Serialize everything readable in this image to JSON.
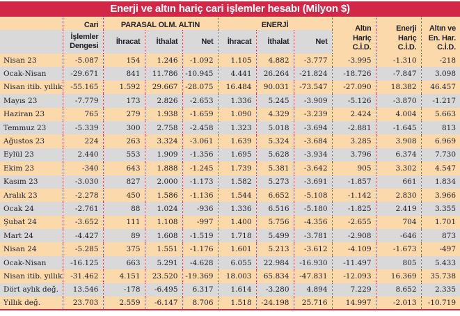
{
  "title": "Enerji ve altın hariç cari işlemler hesabı (Milyon $)",
  "colors": {
    "title_bar": "#d32748",
    "separator_dots": "#d63a45",
    "stripe_peach": "#fcd9ab",
    "stripe_gray": "#d9d9d9",
    "text": "#20202a",
    "title_text": "#ffffff"
  },
  "chart_data": {
    "type": "table",
    "title": "Enerji ve altın hariç cari işlemler hesabı (Milyon $)",
    "header": {
      "corner": "",
      "cari": {
        "l1": "Cari",
        "l2": "İşlemler",
        "l3": "Dengesi"
      },
      "group_altin": "PARASAL OLM. ALTIN",
      "group_enerji": "ENERJİ",
      "sub": [
        "İhracat",
        "İthalat",
        "Net",
        "İhracat",
        "İthalat",
        "Net"
      ],
      "right_cols": [
        {
          "l1": "Altın",
          "l2": "Hariç",
          "l3": "C.İ.D."
        },
        {
          "l1": "Enerji",
          "l2": "Hariç",
          "l3": "C.İ.D."
        },
        {
          "l1": "Altın ve",
          "l2": "En. Har.",
          "l3": "C.İ.D."
        }
      ]
    },
    "rows": [
      [
        "Nisan 23",
        "-5.087",
        "154",
        "1.246",
        "-1.092",
        "1.105",
        "4.882",
        "-3.777",
        "-3.995",
        "-1.310",
        "-218"
      ],
      [
        "Ocak-Nisan",
        "-29.671",
        "841",
        "11.786",
        "-10.945",
        "4.441",
        "26.264",
        "-21.824",
        "-18.726",
        "-7.847",
        "3.098"
      ],
      [
        "Nisan itib. yıllık",
        "-55.165",
        "1.592",
        "29.667",
        "-28.075",
        "16.484",
        "90.031",
        "-73.547",
        "-27.090",
        "18.382",
        "46.457"
      ],
      [
        "Mayıs 23",
        "-7.779",
        "173",
        "2.826",
        "-2.653",
        "1.336",
        "5.245",
        "-3.909",
        "-5.126",
        "-3.870",
        "-1.217"
      ],
      [
        "Haziran 23",
        "765",
        "279",
        "1.938",
        "-1.659",
        "1.090",
        "4.329",
        "-3.239",
        "2.424",
        "4.004",
        "5.663"
      ],
      [
        "Temmuz 23",
        "-5.339",
        "300",
        "2.758",
        "-2.458",
        "1.323",
        "5.018",
        "-3.694",
        "-2.881",
        "-1.645",
        "813"
      ],
      [
        "Ağustos 23",
        "224",
        "263",
        "3.324",
        "-3.061",
        "1.639",
        "5.324",
        "-3.684",
        "3.285",
        "3.908",
        "6.969"
      ],
      [
        "Eylül 23",
        "2.440",
        "553",
        "1.909",
        "-1.356",
        "1.695",
        "5.628",
        "-3.934",
        "3.796",
        "6.374",
        "7.730"
      ],
      [
        "Ekim 23",
        "-340",
        "643",
        "1.888",
        "-1.245",
        "1.739",
        "5.381",
        "-3.642",
        "905",
        "3.302",
        "4.547"
      ],
      [
        "Kasım 23",
        "-3.030",
        "827",
        "2.000",
        "-1.173",
        "1.582",
        "5.273",
        "-3.691",
        "-1.857",
        "661",
        "1.834"
      ],
      [
        "Aralık 23",
        "-2.278",
        "450",
        "1.586",
        "-1.136",
        "1.544",
        "6.652",
        "-5.108",
        "-1.142",
        "2.830",
        "3.966"
      ],
      [
        "Ocak 24",
        "-2.761",
        "88",
        "1.024",
        "-936",
        "1.336",
        "6.516",
        "-5.180",
        "-1.825",
        "2.419",
        "3.355"
      ],
      [
        "Şubat 24",
        "-3.652",
        "111",
        "1.108",
        "-997",
        "1.400",
        "5.756",
        "-4.356",
        "-2.655",
        "704",
        "1.701"
      ],
      [
        "Mart 24",
        "-4.427",
        "89",
        "1.608",
        "-1.519",
        "1.718",
        "5.499",
        "-3.781",
        "-2.908",
        "-646",
        "873"
      ],
      [
        "Nisan 24",
        "-5.285",
        "375",
        "1.551",
        "-1.176",
        "1.601",
        "5.213",
        "-3.612",
        "-4.109",
        "-1.673",
        "-497"
      ],
      [
        "Ocak-Nisan",
        "-16.125",
        "663",
        "5.291",
        "-4.628",
        "6.055",
        "22.984",
        "-16.930",
        "-11.497",
        "805",
        "5.433"
      ],
      [
        "Nisan itib. yıllık",
        "-31.462",
        "4.151",
        "23.520",
        "-19.369",
        "18.003",
        "65.834",
        "-47.831",
        "-12.093",
        "16.369",
        "35.738"
      ],
      [
        "Dört aylık değ.",
        "13.546",
        "-178",
        "-6.495",
        "6.317",
        "1.614",
        "-3.280",
        "4.894",
        "7.229",
        "8.652",
        "2.335"
      ],
      [
        "Yıllık değ.",
        "23.703",
        "2.559",
        "-6.147",
        "8.706",
        "1.518",
        "-24.198",
        "25.716",
        "14.997",
        "-2.013",
        "-10.719"
      ]
    ]
  }
}
